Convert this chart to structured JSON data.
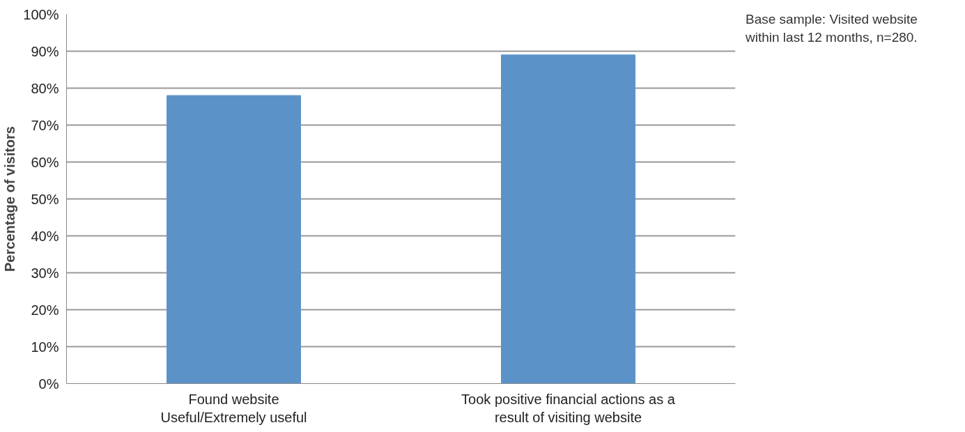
{
  "chart_data": {
    "type": "bar",
    "ylabel": "Percentage of visitors",
    "categories": [
      "Found website\nUseful/Extremely useful",
      "Took positive financial actions as a\nresult of visiting website"
    ],
    "values": [
      78,
      89
    ],
    "color": "#5b93c8",
    "ylim": [
      0,
      100
    ],
    "yticks": [
      {
        "value": 0,
        "label": "0%"
      },
      {
        "value": 10,
        "label": "10%"
      },
      {
        "value": 20,
        "label": "20%"
      },
      {
        "value": 30,
        "label": "30%"
      },
      {
        "value": 40,
        "label": "40%"
      },
      {
        "value": 50,
        "label": "50%"
      },
      {
        "value": 60,
        "label": "60%"
      },
      {
        "value": 70,
        "label": "70%"
      },
      {
        "value": 80,
        "label": "80%"
      },
      {
        "value": 90,
        "label": "90%"
      },
      {
        "value": 100,
        "label": "100%"
      }
    ],
    "grid": "y",
    "annotations": [
      "Base sample: Visited website within last 12 months, n=280."
    ]
  }
}
